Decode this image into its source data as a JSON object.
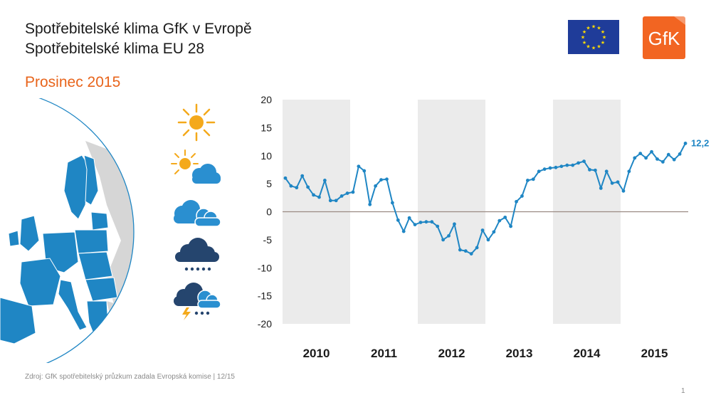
{
  "header": {
    "title_line1": "Spotřebitelské klima GfK v Evropě",
    "title_line2": "Spotřebitelské klima EU 28",
    "subtitle": "Prosinec 2015",
    "logo_text": "GfK"
  },
  "colors": {
    "line": "#1f86c4",
    "accent": "#e8641b",
    "band": "#ebebeb",
    "zero_line": "#9a8a82",
    "eu_blue": "#1f3c99",
    "eu_star": "#ffdd00",
    "logo": "#f26522",
    "map_country": "#1f86c4",
    "map_land": "#d6d6d6",
    "sun": "#f4a91b",
    "cloud_light": "#2a8fd0",
    "cloud_dark": "#25456e"
  },
  "icons": [
    "sun-icon",
    "sun-behind-cloud-icon",
    "clouds-icon",
    "rain-cloud-icon",
    "thunderstorm-icon"
  ],
  "chart_data": {
    "type": "line",
    "title": "Spotřebitelské klima EU 28",
    "ylim": [
      -20,
      20
    ],
    "y_ticks": [
      "20",
      "15",
      "10",
      "5",
      "0",
      "-5",
      "-10",
      "-15",
      "-20"
    ],
    "x_labels": [
      "2010",
      "2011",
      "2012",
      "2013",
      "2014",
      "2015"
    ],
    "shaded_years": [
      "2010",
      "2012",
      "2014"
    ],
    "last_value_label": "12,2",
    "series": [
      {
        "name": "Spotřebitelské klima EU 28",
        "start": "2010-01",
        "frequency": "monthly",
        "values": [
          6.0,
          4.6,
          4.3,
          6.4,
          4.4,
          3.0,
          2.6,
          5.6,
          2.0,
          2.0,
          2.8,
          3.3,
          3.5,
          8.1,
          7.3,
          1.3,
          4.6,
          5.7,
          5.8,
          1.6,
          -1.5,
          -3.5,
          -1.1,
          -2.3,
          -1.9,
          -1.8,
          -1.8,
          -2.6,
          -5.0,
          -4.3,
          -2.2,
          -6.8,
          -7.0,
          -7.5,
          -6.4,
          -3.3,
          -5.0,
          -3.6,
          -1.6,
          -1.0,
          -2.6,
          1.8,
          2.8,
          5.6,
          5.8,
          7.2,
          7.6,
          7.8,
          7.9,
          8.1,
          8.3,
          8.3,
          8.7,
          9.0,
          7.5,
          7.4,
          4.2,
          7.2,
          5.1,
          5.3,
          3.7,
          7.2,
          9.6,
          10.4,
          9.6,
          10.7,
          9.4,
          8.9,
          10.2,
          9.3,
          10.3,
          12.2
        ]
      }
    ]
  },
  "footer": {
    "source": "Zdroj: GfK spotřebitelský průzkum zadala Evropská komise | 12/15",
    "page_number": "1"
  }
}
